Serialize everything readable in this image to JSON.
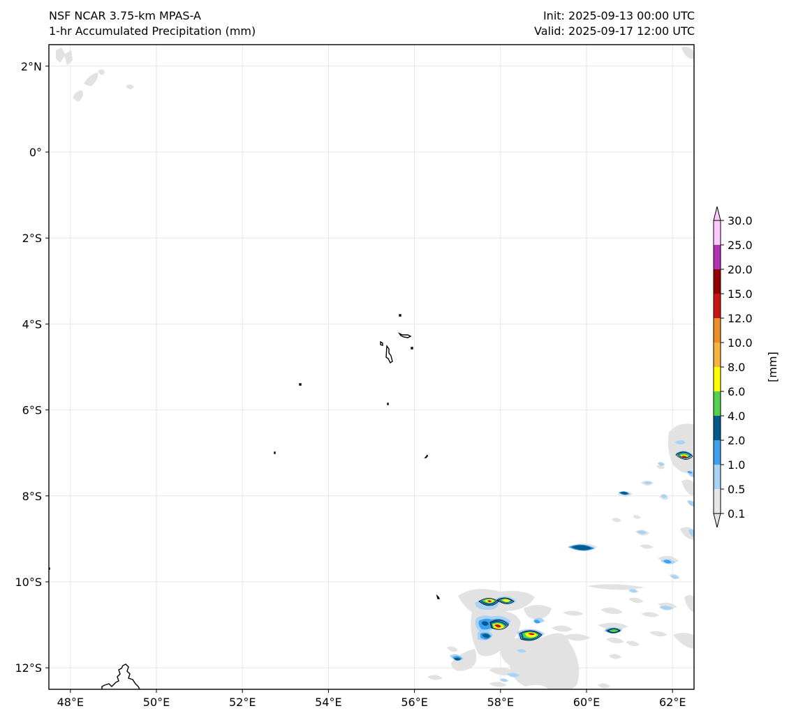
{
  "header": {
    "model": "NSF NCAR 3.75-km MPAS-A",
    "field": "1-hr Accumulated Precipitation (mm)",
    "init": "Init: 2025-09-13 00:00 UTC",
    "valid": "Valid: 2025-09-17 12:00 UTC"
  },
  "map": {
    "lon_range": [
      47.5,
      62.5
    ],
    "lat_range": [
      -12.5,
      2.5
    ],
    "lon_ticks": [
      {
        "value": 48,
        "label": "48°E"
      },
      {
        "value": 50,
        "label": "50°E"
      },
      {
        "value": 52,
        "label": "52°E"
      },
      {
        "value": 54,
        "label": "54°E"
      },
      {
        "value": 56,
        "label": "56°E"
      },
      {
        "value": 58,
        "label": "58°E"
      },
      {
        "value": 60,
        "label": "60°E"
      },
      {
        "value": 62,
        "label": "62°E"
      }
    ],
    "lat_ticks": [
      {
        "value": 2,
        "label": "2°N"
      },
      {
        "value": 0,
        "label": "0°"
      },
      {
        "value": -2,
        "label": "2°S"
      },
      {
        "value": -4,
        "label": "4°S"
      },
      {
        "value": -6,
        "label": "6°S"
      },
      {
        "value": -8,
        "label": "8°S"
      },
      {
        "value": -10,
        "label": "10°S"
      },
      {
        "value": -12,
        "label": "12°S"
      }
    ],
    "gridlines": true
  },
  "colorbar": {
    "unit": "[mm]",
    "levels": [
      "0.1",
      "0.5",
      "1.0",
      "2.0",
      "4.0",
      "6.0",
      "8.0",
      "10.0",
      "12.0",
      "15.0",
      "20.0",
      "25.0",
      "30.0"
    ],
    "colors": [
      "#e6e6e6",
      "#a8d3f5",
      "#3ca0f0",
      "#005a8c",
      "#50d250",
      "#ffff00",
      "#f5b43c",
      "#f08c28",
      "#c81414",
      "#960000",
      "#b432b4",
      "#ffc8ff"
    ],
    "extend": "both"
  },
  "precip_colors": {
    "trace": "#e2e2e2",
    "light": "#a8d3f5",
    "moderate": "#3ca0f0",
    "heavy": "#005a8c",
    "green": "#50d250",
    "yellow": "#ffff00",
    "red": "#c81414"
  }
}
